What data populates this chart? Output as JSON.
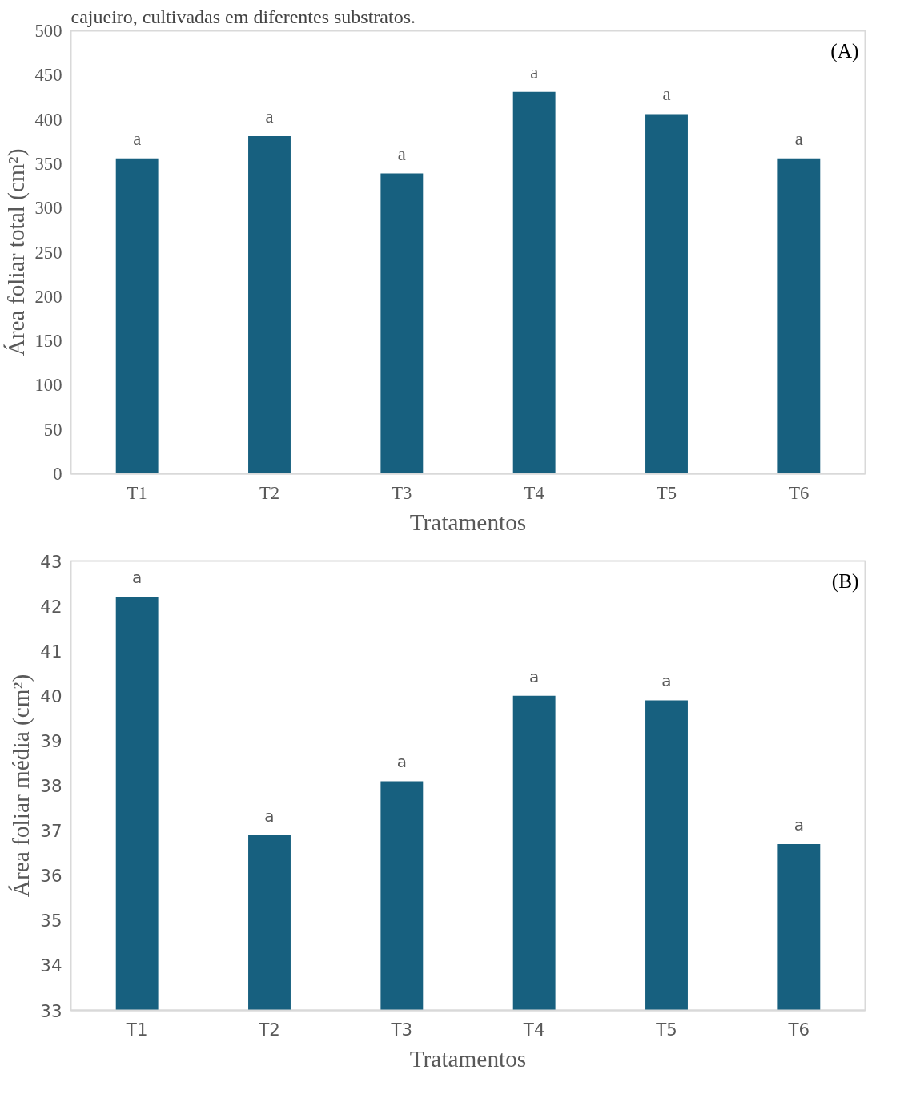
{
  "chart_data": [
    {
      "type": "bar",
      "categories": [
        "T1",
        "T2",
        "T3",
        "T4",
        "T5",
        "T6"
      ],
      "values": [
        356,
        381,
        339,
        431,
        406,
        356
      ],
      "color": "#17607f",
      "xlabel": "Tratamentos",
      "ylabel": "Área foliar total (cm²)",
      "ylim": [
        0,
        500
      ],
      "yticks": [
        0,
        50,
        100,
        150,
        200,
        250,
        300,
        350,
        400,
        450,
        500
      ],
      "grid": false,
      "annotations": [
        "cajueiro, cultivadas em diferentes substratos.",
        "(A)",
        {
          "text": "a",
          "x": "T1",
          "y": 356
        },
        {
          "text": "a",
          "x": "T2",
          "y": 381
        },
        {
          "text": "a",
          "x": "T3",
          "y": 339
        },
        {
          "text": "a",
          "x": "T4",
          "y": 431
        },
        {
          "text": "a",
          "x": "T5",
          "y": 406
        },
        {
          "text": "a",
          "x": "T6",
          "y": 356
        }
      ]
    },
    {
      "type": "bar",
      "categories": [
        "T1",
        "T2",
        "T3",
        "T4",
        "T5",
        "T6"
      ],
      "values": [
        42.2,
        36.9,
        38.1,
        40.0,
        39.9,
        36.7
      ],
      "color": "#17607f",
      "xlabel": "Tratamentos",
      "ylabel": "Área foliar média (cm²)",
      "ylim": [
        33,
        43
      ],
      "yticks": [
        33,
        34,
        35,
        36,
        37,
        38,
        39,
        40,
        41,
        42,
        43
      ],
      "grid": false,
      "annotations": [
        "(B)",
        {
          "text": "a",
          "x": "T1",
          "y": 42.2
        },
        {
          "text": "a",
          "x": "T2",
          "y": 36.9
        },
        {
          "text": "a",
          "x": "T3",
          "y": 38.1
        },
        {
          "text": "a",
          "x": "T4",
          "y": 40.0
        },
        {
          "text": "a",
          "x": "T5",
          "y": 39.9
        },
        {
          "text": "a",
          "x": "T6",
          "y": 36.7
        }
      ]
    }
  ]
}
